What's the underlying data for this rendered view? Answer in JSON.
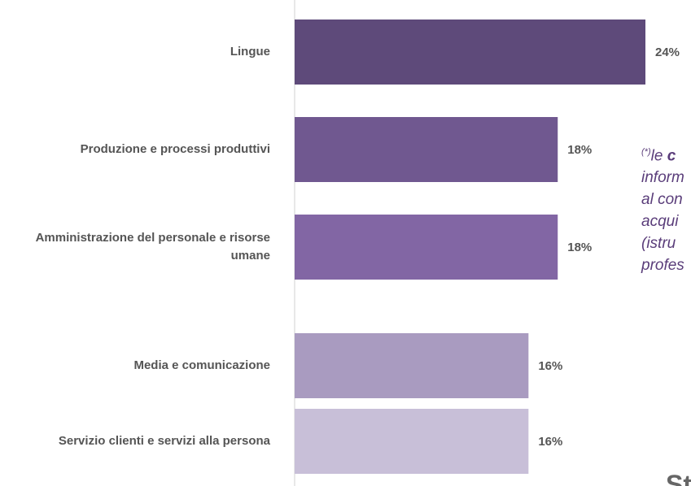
{
  "chart_data": {
    "type": "bar",
    "categories": [
      "Lingue",
      "Produzione e processi produttivi",
      "Amministrazione del personale e risorse umane",
      "Media e comunicazione",
      "Servizio clienti e servizi alla persona"
    ],
    "values": [
      24,
      18,
      18,
      16,
      16
    ],
    "value_labels": [
      "24%",
      "18%",
      "18%",
      "16%",
      "16%"
    ],
    "colors": [
      "#5e4a7a",
      "#705890",
      "#8266a4",
      "#a99bc0",
      "#c8bfd8"
    ]
  },
  "note": {
    "marker": "(*)",
    "lead": "le ",
    "bold": "c",
    "lines": [
      "inform",
      "al con",
      "acqui",
      "(istru",
      "profes"
    ]
  },
  "heading_fragment": "St"
}
